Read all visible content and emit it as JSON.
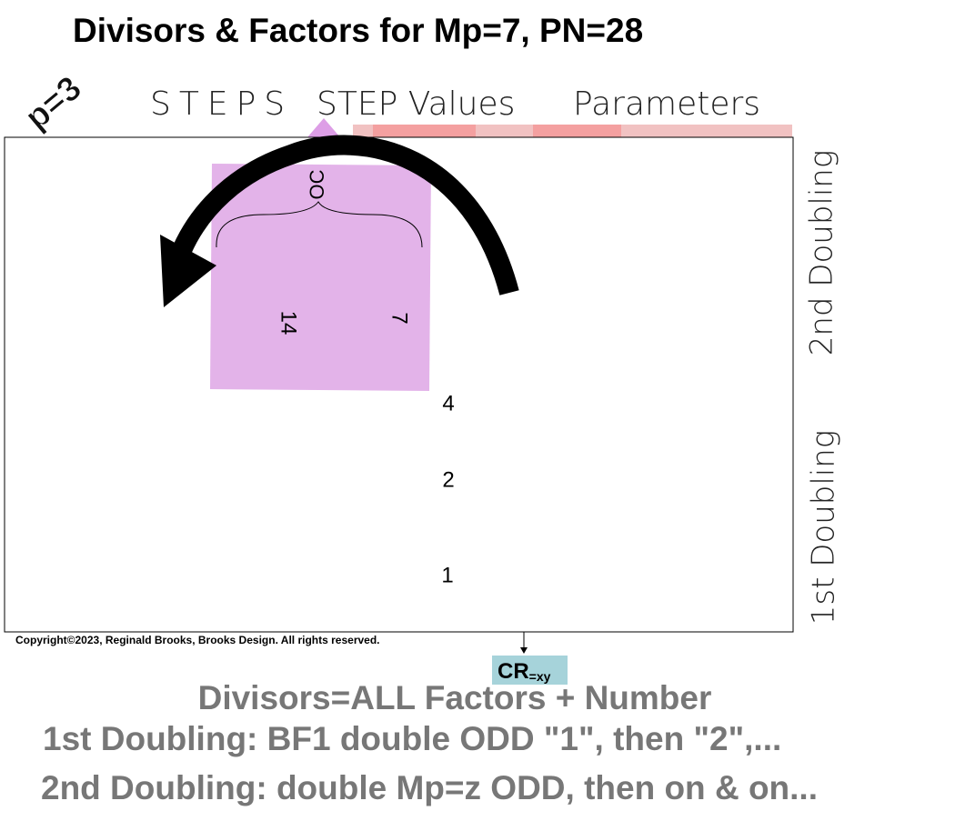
{
  "header": {
    "title": "Divisors & Factors for Mp=7, PN=28",
    "p_label": "p=3"
  },
  "columns": {
    "steps": "STEPS",
    "step_values": "STEP Values",
    "parameters": "Parameters"
  },
  "diagram": {
    "oc": "OC",
    "top_values": [
      "14",
      "7"
    ],
    "values": [
      "4",
      "2",
      "1"
    ],
    "side_labels": [
      "2nd Doubling",
      "1st Doubling"
    ],
    "copyright": "Copyright©2023, Reginald Brooks, Brooks Design. All rights reserved.",
    "cr": "CR",
    "cr_sub": "=xy"
  },
  "notes": [
    "Divisors=ALL Factors + Number",
    "1st Doubling: BF1 double ODD \"1\", then \"2\",...",
    "2nd Doubling: double Mp=z ODD, then on & on..."
  ]
}
